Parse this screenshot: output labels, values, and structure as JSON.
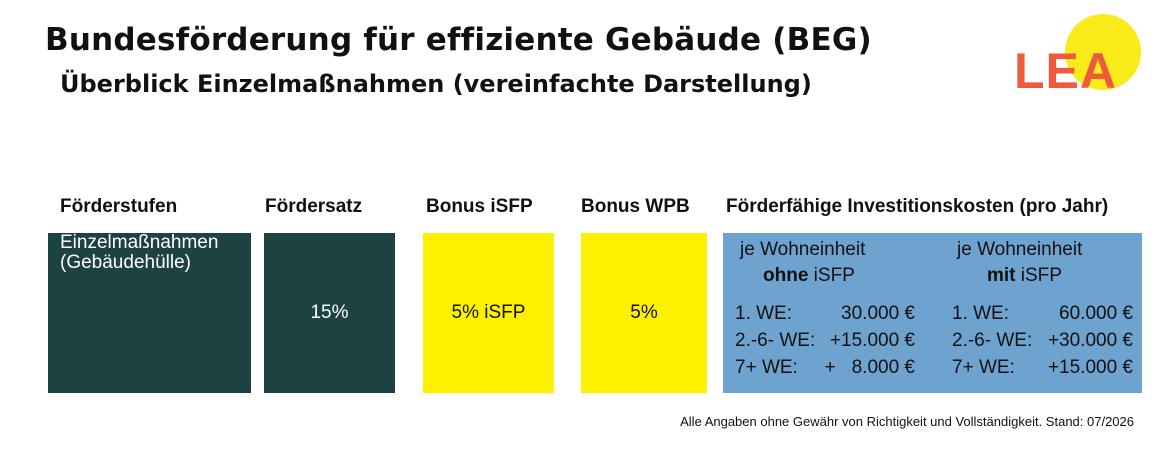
{
  "header": {
    "title": "Bundesförderung für effiziente Gebäude (BEG)",
    "subtitle": "Überblick Einzelmaßnahmen (vereinfachte Darstellung)"
  },
  "logo": {
    "text": "LEA",
    "colors": {
      "text": "#ef5a3c",
      "sun": "#f9ea19"
    }
  },
  "columns": {
    "stufen": "Förderstufen",
    "satz": "Fördersatz",
    "isfp": "Bonus iSFP",
    "wpb": "Bonus WPB",
    "kosten": "Förderfähige Investitionskosten (pro Jahr)"
  },
  "row": {
    "stufe_line1": "Einzelmaßnahmen",
    "stufe_line2": "(Gebäudehülle)",
    "satz": "15%",
    "isfp": "5% iSFP",
    "wpb": "5%"
  },
  "invest": {
    "left": {
      "head1": "je Wohneinheit",
      "head2_bold": "ohne",
      "head2_rest": " iSFP",
      "rows": [
        {
          "label": "1. WE:",
          "value": "30.000 €"
        },
        {
          "label": "2.-6- WE:",
          "value": "+15.000 €"
        },
        {
          "label": "7+ WE:",
          "value": "+   8.000 €"
        }
      ]
    },
    "right": {
      "head1": "je Wohneinheit",
      "head2_bold": "mit",
      "head2_rest": " iSFP",
      "rows": [
        {
          "label": "1. WE:",
          "value": "60.000 €"
        },
        {
          "label": "2.-6- WE:",
          "value": "+30.000 €"
        },
        {
          "label": "7+ WE:",
          "value": "+15.000 €"
        }
      ]
    }
  },
  "footer": "Alle Angaben ohne Gewähr von Richtigkeit und Vollständigkeit. Stand: 07/2026",
  "colors": {
    "dark_green": "#1d4242",
    "yellow": "#fdf100",
    "blue": "#6ea3cf"
  }
}
